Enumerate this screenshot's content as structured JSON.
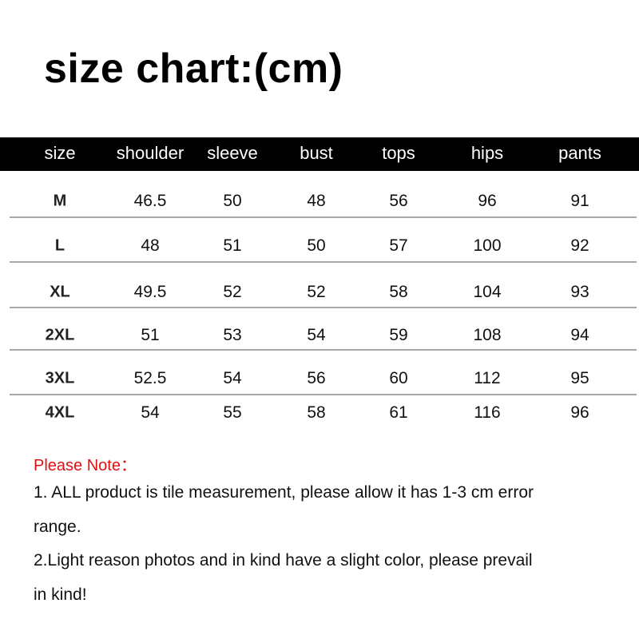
{
  "title": "size chart:(cm)",
  "table": {
    "headers": [
      "size",
      "shoulder",
      "sleeve",
      "bust",
      "tops",
      "hips",
      "pants"
    ],
    "rows": [
      [
        "M",
        "46.5",
        "50",
        "48",
        "56",
        "96",
        "91"
      ],
      [
        "L",
        "48",
        "51",
        "50",
        "57",
        "100",
        "92"
      ],
      [
        "XL",
        "49.5",
        "52",
        "52",
        "58",
        "104",
        "93"
      ],
      [
        "2XL",
        "51",
        "53",
        "54",
        "59",
        "108",
        "94"
      ],
      [
        "3XL",
        "52.5",
        "54",
        "56",
        "60",
        "112",
        "95"
      ],
      [
        "4XL",
        "54",
        "55",
        "58",
        "61",
        "116",
        "96"
      ]
    ]
  },
  "notes": {
    "heading": "Please Note：",
    "lines": [
      "1. ALL product is tile measurement, please allow it has 1-3 cm error",
      "range.",
      "2.Light reason photos and in kind have a slight color, please prevail",
      "in kind!"
    ]
  },
  "colors": {
    "header_bg": "#000000",
    "note_heading": "#e01010"
  }
}
